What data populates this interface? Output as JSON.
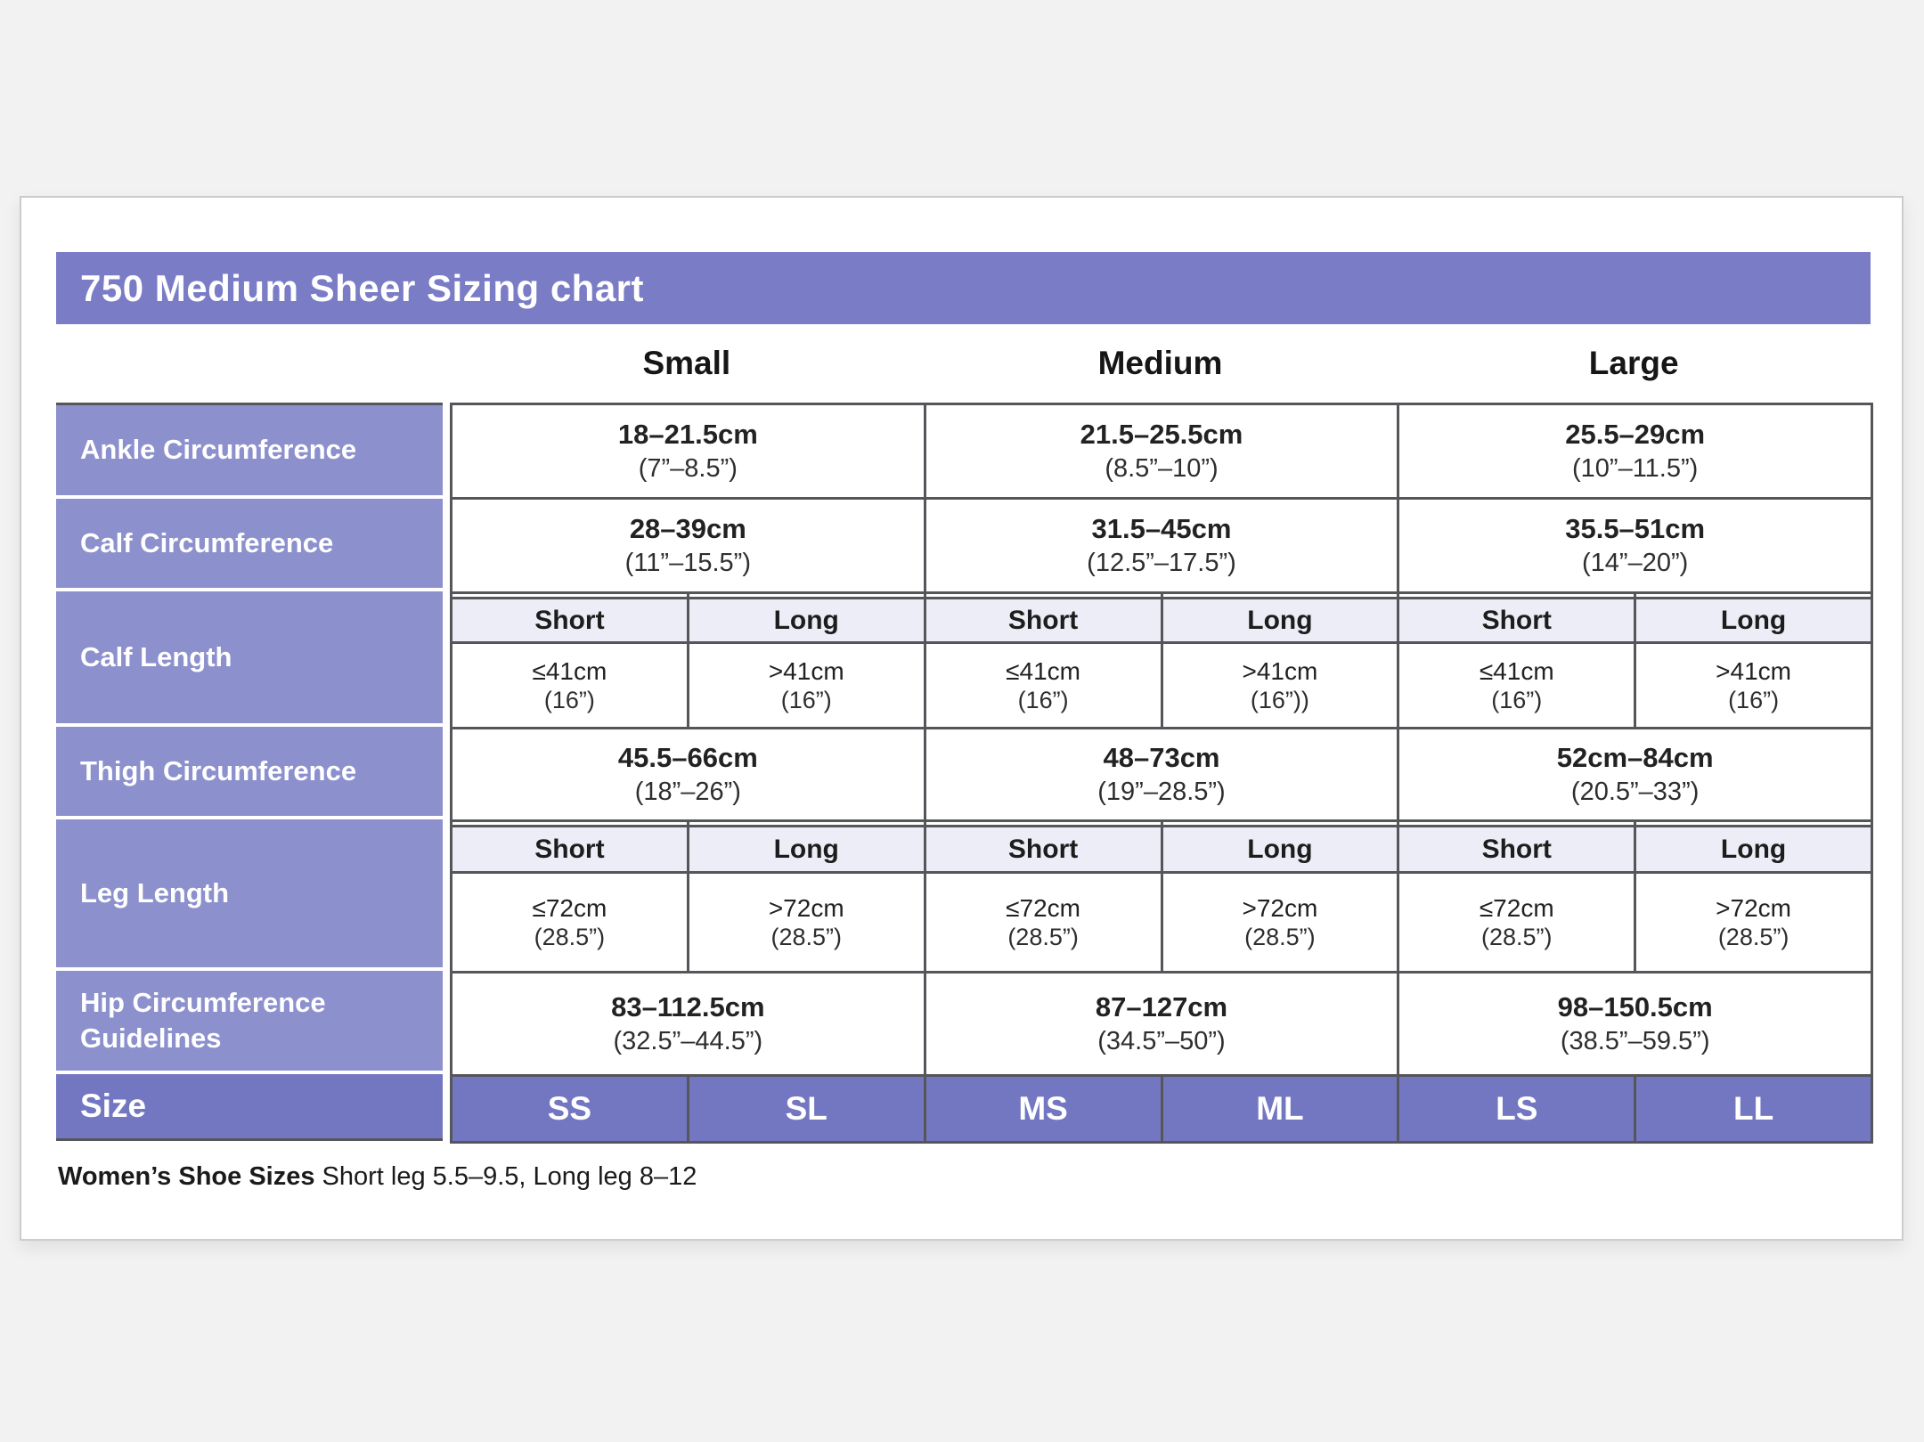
{
  "title": "750 Medium Sheer Sizing chart",
  "columns": [
    "Small",
    "Medium",
    "Large"
  ],
  "rows": {
    "ankle": {
      "label": "Ankle Circumference",
      "values": [
        {
          "cm": "18–21.5cm",
          "inches": "(7”–8.5”)"
        },
        {
          "cm": "21.5–25.5cm",
          "inches": "(8.5”–10”)"
        },
        {
          "cm": "25.5–29cm",
          "inches": "(10”–11.5”)"
        }
      ]
    },
    "calf": {
      "label": "Calf Circumference",
      "values": [
        {
          "cm": "28–39cm",
          "inches": "(11”–15.5”)"
        },
        {
          "cm": "31.5–45cm",
          "inches": "(12.5”–17.5”)"
        },
        {
          "cm": "35.5–51cm",
          "inches": "(14”–20”)"
        }
      ]
    },
    "calf_length": {
      "label": "Calf Length",
      "subheaders": [
        "Short",
        "Long",
        "Short",
        "Long",
        "Short",
        "Long"
      ],
      "values": [
        {
          "cm": "≤41cm",
          "inches": "(16”)"
        },
        {
          "cm": ">41cm",
          "inches": "(16”)"
        },
        {
          "cm": "≤41cm",
          "inches": "(16”)"
        },
        {
          "cm": ">41cm",
          "inches": "(16”))"
        },
        {
          "cm": "≤41cm",
          "inches": "(16”)"
        },
        {
          "cm": ">41cm",
          "inches": "(16”)"
        }
      ]
    },
    "thigh": {
      "label": "Thigh Circumference",
      "values": [
        {
          "cm": "45.5–66cm",
          "inches": "(18”–26”)"
        },
        {
          "cm": "48–73cm",
          "inches": "(19”–28.5”)"
        },
        {
          "cm": "52cm–84cm",
          "inches": "(20.5”–33”)"
        }
      ]
    },
    "leg_length": {
      "label": "Leg Length",
      "subheaders": [
        "Short",
        "Long",
        "Short",
        "Long",
        "Short",
        "Long"
      ],
      "values": [
        {
          "cm": "≤72cm",
          "inches": "(28.5”)"
        },
        {
          "cm": ">72cm",
          "inches": "(28.5”)"
        },
        {
          "cm": "≤72cm",
          "inches": "(28.5”)"
        },
        {
          "cm": ">72cm",
          "inches": "(28.5”)"
        },
        {
          "cm": "≤72cm",
          "inches": "(28.5”)"
        },
        {
          "cm": ">72cm",
          "inches": "(28.5”)"
        }
      ]
    },
    "hip": {
      "label": "Hip Circumference Guidelines",
      "values": [
        {
          "cm": "83–112.5cm",
          "inches": "(32.5”–44.5”)"
        },
        {
          "cm": "87–127cm",
          "inches": "(34.5”–50”)"
        },
        {
          "cm": "98–150.5cm",
          "inches": "(38.5”–59.5”)"
        }
      ]
    },
    "size": {
      "label": "Size",
      "values": [
        "SS",
        "SL",
        "MS",
        "ML",
        "LS",
        "LL"
      ]
    }
  },
  "footer": {
    "bold": "Women’s Shoe Sizes",
    "rest": " Short leg 5.5–9.5, Long leg 8–12"
  },
  "colors": {
    "banner": "#7a7dc6",
    "row_label": "#8c90cd",
    "size_row": "#7377c1",
    "subheader_band": "#ecedf6",
    "grid_line": "#55565a"
  },
  "chart_data": {
    "type": "table",
    "title": "750 Medium Sheer Sizing chart",
    "column_groups": [
      "Small",
      "Medium",
      "Large"
    ],
    "sub_columns": [
      "Short",
      "Long"
    ],
    "rows": [
      {
        "label": "Ankle Circumference",
        "small": "18–21.5cm (7”–8.5”)",
        "medium": "21.5–25.5cm (8.5”–10”)",
        "large": "25.5–29cm (10”–11.5”)"
      },
      {
        "label": "Calf Circumference",
        "small": "28–39cm (11”–15.5”)",
        "medium": "31.5–45cm (12.5”–17.5”)",
        "large": "35.5–51cm (14”–20”)"
      },
      {
        "label": "Calf Length",
        "small_short": "≤41cm (16”)",
        "small_long": ">41cm (16”)",
        "medium_short": "≤41cm (16”)",
        "medium_long": ">41cm (16”))",
        "large_short": "≤41cm (16”)",
        "large_long": ">41cm (16”)"
      },
      {
        "label": "Thigh Circumference",
        "small": "45.5–66cm (18”–26”)",
        "medium": "48–73cm (19”–28.5”)",
        "large": "52cm–84cm (20.5”–33”)"
      },
      {
        "label": "Leg Length",
        "small_short": "≤72cm (28.5”)",
        "small_long": ">72cm (28.5”)",
        "medium_short": "≤72cm (28.5”)",
        "medium_long": ">72cm (28.5”)",
        "large_short": "≤72cm (28.5”)",
        "large_long": ">72cm (28.5”)"
      },
      {
        "label": "Hip Circumference Guidelines",
        "small": "83–112.5cm (32.5”–44.5”)",
        "medium": "87–127cm (34.5”–50”)",
        "large": "98–150.5cm (38.5”–59.5”)"
      },
      {
        "label": "Size",
        "sizes": [
          "SS",
          "SL",
          "MS",
          "ML",
          "LS",
          "LL"
        ]
      }
    ],
    "footnote": "Women’s Shoe Sizes Short leg 5.5–9.5, Long leg 8–12"
  }
}
